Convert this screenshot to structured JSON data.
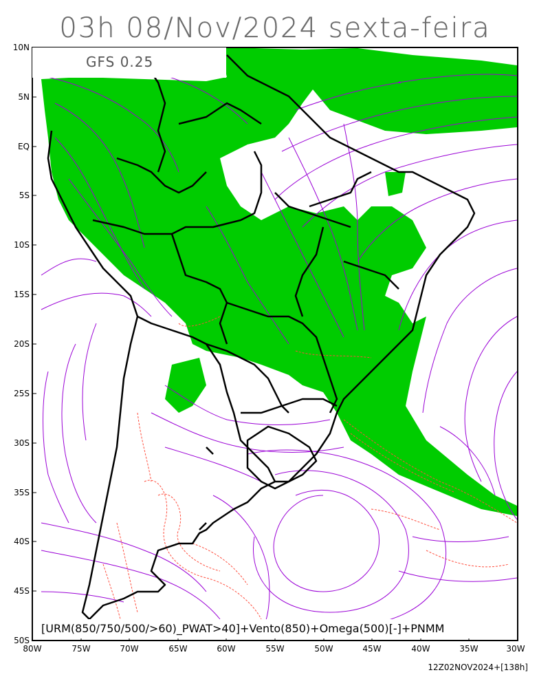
{
  "title": "03h 08/Nov/2024 sexta-feira",
  "model": "GFS 0.25",
  "caption": "[URM(850/750/500/>60)_PWAT>40]+Vento(850)+Omega(500)[-]+PNMM",
  "init_label": "12Z02NOV2024+[138h]",
  "lat_labels": [
    "10N",
    "5N",
    "EQ",
    "5S",
    "10S",
    "15S",
    "20S",
    "25S",
    "30S",
    "35S",
    "40S",
    "45S",
    "50S"
  ],
  "lon_labels": [
    "80W",
    "75W",
    "70W",
    "65W",
    "60W",
    "55W",
    "50W",
    "45W",
    "40W",
    "35W",
    "30W"
  ],
  "extent": {
    "lon": [
      -80,
      -30
    ],
    "lat": [
      -50,
      10
    ]
  },
  "colors": {
    "moisture": "#00cc00",
    "streamlines": "#9a00d6",
    "omega": "#ff4d3d",
    "borders": "#000000"
  }
}
